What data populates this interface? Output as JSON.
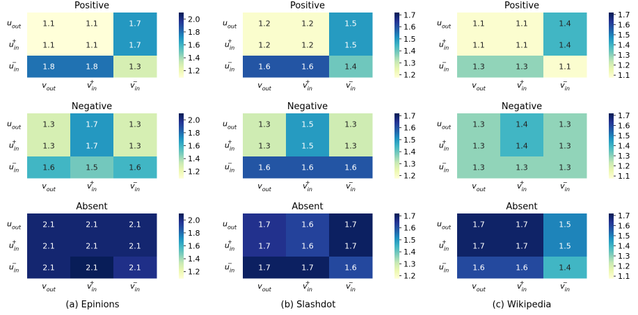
{
  "colormap": "YlGnBu",
  "row_labels": [
    "u_out",
    "u_in^+",
    "u_in^-"
  ],
  "col_labels": [
    "v_out",
    "v_in^+",
    "v_in^-"
  ],
  "captions": [
    "(a) Epinions",
    "(b) Slashdot",
    "(c) Wikipedia"
  ],
  "chart_data": [
    {
      "type": "heatmap",
      "dataset": "Epinions",
      "title": "Positive",
      "values": [
        [
          1.1,
          1.1,
          1.7
        ],
        [
          1.1,
          1.1,
          1.7
        ],
        [
          1.8,
          1.8,
          1.3
        ]
      ],
      "vmin": 1.1,
      "vmax": 2.1,
      "colorbar_ticks": [
        "1.2",
        "1.4",
        "1.6",
        "1.8",
        "2.0"
      ]
    },
    {
      "type": "heatmap",
      "dataset": "Slashdot",
      "title": "Positive",
      "values": [
        [
          1.2,
          1.2,
          1.5
        ],
        [
          1.2,
          1.2,
          1.5
        ],
        [
          1.6,
          1.6,
          1.4
        ]
      ],
      "vmin": 1.18,
      "vmax": 1.72,
      "colorbar_ticks": [
        "1.2",
        "1.3",
        "1.4",
        "1.5",
        "1.6",
        "1.7"
      ]
    },
    {
      "type": "heatmap",
      "dataset": "Wikipedia",
      "title": "Positive",
      "values": [
        [
          1.1,
          1.1,
          1.4
        ],
        [
          1.1,
          1.1,
          1.4
        ],
        [
          1.3,
          1.3,
          1.1
        ]
      ],
      "vmin": 1.08,
      "vmax": 1.72,
      "colorbar_ticks": [
        "1.1",
        "1.2",
        "1.3",
        "1.4",
        "1.5",
        "1.6",
        "1.7"
      ]
    },
    {
      "type": "heatmap",
      "dataset": "Epinions",
      "title": "Negative",
      "values": [
        [
          1.3,
          1.7,
          1.3
        ],
        [
          1.3,
          1.7,
          1.3
        ],
        [
          1.6,
          1.5,
          1.6
        ]
      ],
      "vmin": 1.1,
      "vmax": 2.1,
      "colorbar_ticks": [
        "1.2",
        "1.4",
        "1.6",
        "1.8",
        "2.0"
      ]
    },
    {
      "type": "heatmap",
      "dataset": "Slashdot",
      "title": "Negative",
      "values": [
        [
          1.3,
          1.5,
          1.3
        ],
        [
          1.3,
          1.5,
          1.3
        ],
        [
          1.6,
          1.6,
          1.6
        ]
      ],
      "vmin": 1.18,
      "vmax": 1.72,
      "colorbar_ticks": [
        "1.2",
        "1.3",
        "1.4",
        "1.5",
        "1.6",
        "1.7"
      ]
    },
    {
      "type": "heatmap",
      "dataset": "Wikipedia",
      "title": "Negative",
      "values": [
        [
          1.3,
          1.4,
          1.3
        ],
        [
          1.3,
          1.4,
          1.3
        ],
        [
          1.3,
          1.3,
          1.3
        ]
      ],
      "vmin": 1.08,
      "vmax": 1.72,
      "colorbar_ticks": [
        "1.1",
        "1.2",
        "1.3",
        "1.4",
        "1.5",
        "1.6",
        "1.7"
      ]
    },
    {
      "type": "heatmap",
      "dataset": "Epinions",
      "title": "Absent",
      "values": [
        [
          2.1,
          2.1,
          2.1
        ],
        [
          2.1,
          2.1,
          2.1
        ],
        [
          2.1,
          2.1,
          2.1
        ]
      ],
      "shade": [
        [
          2.05,
          2.05,
          2.05
        ],
        [
          2.05,
          2.05,
          2.05
        ],
        [
          2.05,
          2.1,
          2.0
        ]
      ],
      "vmin": 1.1,
      "vmax": 2.1,
      "colorbar_ticks": [
        "1.2",
        "1.4",
        "1.6",
        "1.8",
        "2.0"
      ]
    },
    {
      "type": "heatmap",
      "dataset": "Slashdot",
      "title": "Absent",
      "values": [
        [
          1.7,
          1.6,
          1.7
        ],
        [
          1.7,
          1.6,
          1.7
        ],
        [
          1.7,
          1.7,
          1.6
        ]
      ],
      "shade": [
        [
          1.66,
          1.63,
          1.71
        ],
        [
          1.66,
          1.63,
          1.71
        ],
        [
          1.71,
          1.71,
          1.62
        ]
      ],
      "vmin": 1.18,
      "vmax": 1.72,
      "colorbar_ticks": [
        "1.2",
        "1.3",
        "1.4",
        "1.5",
        "1.6",
        "1.7"
      ]
    },
    {
      "type": "heatmap",
      "dataset": "Wikipedia",
      "title": "Absent",
      "values": [
        [
          1.7,
          1.7,
          1.5
        ],
        [
          1.7,
          1.7,
          1.5
        ],
        [
          1.6,
          1.6,
          1.4
        ]
      ],
      "vmin": 1.08,
      "vmax": 1.72,
      "colorbar_ticks": [
        "1.1",
        "1.2",
        "1.3",
        "1.4",
        "1.5",
        "1.6",
        "1.7"
      ]
    }
  ]
}
